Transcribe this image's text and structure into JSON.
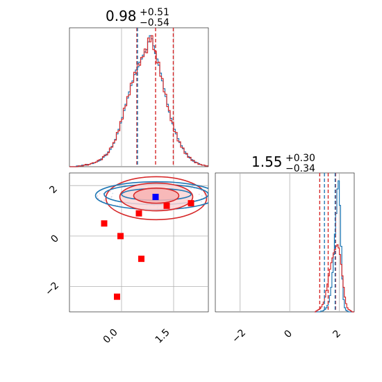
{
  "chart_data": [
    {
      "panel": "histogram-param-1",
      "type": "histogram",
      "title": {
        "main": "0.98",
        "plus": "+0.51",
        "minus": "−0.54"
      },
      "xlim": [
        -1.5,
        2.5
      ],
      "colors": {
        "blue": "#1f77b4",
        "red": "#d62728"
      },
      "quantile_lines": {
        "red": [
          0.44,
          0.98,
          1.49
        ],
        "blue": [
          0.46
        ]
      },
      "bin_edges_start": -1.5,
      "bin_width": 0.05,
      "series": [
        {
          "name": "",
          "color": "#1f77b4",
          "counts": [
            0,
            0,
            0,
            0,
            1,
            1,
            1,
            2,
            2,
            2,
            3,
            3,
            4,
            4,
            5,
            6,
            7,
            8,
            10,
            12,
            14,
            16,
            19,
            22,
            26,
            30,
            35,
            42,
            48,
            56,
            63,
            72,
            80,
            88,
            96,
            104,
            110,
            118,
            124,
            128,
            134,
            138,
            143,
            147,
            150,
            160,
            168,
            164,
            155,
            145,
            138,
            130,
            120,
            110,
            100,
            90,
            80,
            70,
            62,
            55,
            48,
            42,
            36,
            31,
            27,
            23,
            19,
            16,
            13,
            11,
            9,
            7,
            6,
            5,
            4,
            3,
            2,
            2,
            1,
            1
          ]
        },
        {
          "name": "",
          "color": "#d62728",
          "counts": [
            0,
            0,
            0,
            0,
            0,
            1,
            1,
            1,
            2,
            3,
            2,
            3,
            4,
            5,
            5,
            6,
            8,
            9,
            9,
            13,
            15,
            15,
            18,
            24,
            25,
            31,
            34,
            44,
            46,
            58,
            61,
            75,
            78,
            90,
            92,
            107,
            108,
            121,
            120,
            132,
            130,
            140,
            141,
            151,
            146,
            165,
            160,
            168,
            150,
            148,
            133,
            134,
            116,
            113,
            96,
            93,
            77,
            72,
            59,
            57,
            45,
            44,
            33,
            32,
            25,
            24,
            17,
            17,
            12,
            12,
            8,
            8,
            5,
            5,
            3,
            3,
            2,
            2,
            1,
            1
          ]
        }
      ]
    },
    {
      "panel": "scatter-contour",
      "type": "scatter",
      "xlim": [
        -1.5,
        2.5
      ],
      "ylim": [
        -3,
        2.5
      ],
      "x_ticks": [
        "0.0",
        "1.5"
      ],
      "y_ticks": [
        "2",
        "0",
        "−2"
      ],
      "blue_marker": {
        "x": 0.98,
        "y": 1.55
      },
      "red_markers": [
        {
          "x": -0.5,
          "y": 0.5
        },
        {
          "x": -0.03,
          "y": 0.0
        },
        {
          "x": 0.5,
          "y": 0.9
        },
        {
          "x": 0.57,
          "y": -0.9
        },
        {
          "x": 1.3,
          "y": 1.2
        },
        {
          "x": 2.0,
          "y": 1.3
        },
        {
          "x": -0.13,
          "y": -2.4
        }
      ],
      "contours": [
        {
          "color": "#d62728",
          "cx": 1.0,
          "cy": 1.6,
          "rx": 0.65,
          "ry": 0.3,
          "fill": "#f7b3b3"
        },
        {
          "color": "#d62728",
          "cx": 1.0,
          "cy": 1.55,
          "rx": 1.05,
          "ry": 0.55,
          "fill": "#fbd6d6"
        },
        {
          "color": "#d62728",
          "cx": 1.0,
          "cy": 1.5,
          "rx": 1.45,
          "ry": 0.85,
          "fill": "none"
        },
        {
          "color": "#1f77b4",
          "cx": 1.0,
          "cy": 1.65,
          "rx": 1.0,
          "ry": 0.23,
          "fill": "none"
        },
        {
          "color": "#1f77b4",
          "cx": 1.0,
          "cy": 1.65,
          "rx": 1.5,
          "ry": 0.4,
          "fill": "none"
        },
        {
          "color": "#1f77b4",
          "cx": 1.0,
          "cy": 1.6,
          "rx": 1.75,
          "ry": 0.55,
          "fill": "none"
        }
      ]
    },
    {
      "panel": "histogram-param-2",
      "type": "histogram",
      "title": {
        "main": "1.55",
        "plus": "+0.30",
        "minus": "−0.34"
      },
      "xlim": [
        -3,
        2.6
      ],
      "x_ticks": [
        "−2",
        "0",
        "2"
      ],
      "quantile_lines": {
        "red": [
          1.21,
          1.55,
          1.85
        ],
        "blue": [
          1.4,
          1.83
        ]
      },
      "bin_edges_start": 1.0,
      "bin_width": 0.05,
      "series": [
        {
          "name": "",
          "color": "#1f77b4",
          "counts": [
            0,
            0,
            0,
            0,
            0,
            1,
            1,
            2,
            3,
            5,
            8,
            12,
            20,
            30,
            48,
            70,
            95,
            120,
            150,
            160,
            130,
            80,
            40,
            15,
            5,
            2,
            1,
            0,
            0,
            0,
            0,
            0
          ]
        },
        {
          "name": "",
          "color": "#d62728",
          "counts": [
            0,
            1,
            2,
            3,
            4,
            6,
            9,
            12,
            18,
            26,
            34,
            44,
            52,
            60,
            66,
            72,
            76,
            80,
            82,
            78,
            70,
            58,
            44,
            30,
            18,
            10,
            5,
            3,
            2,
            1,
            0,
            0
          ]
        }
      ]
    }
  ]
}
